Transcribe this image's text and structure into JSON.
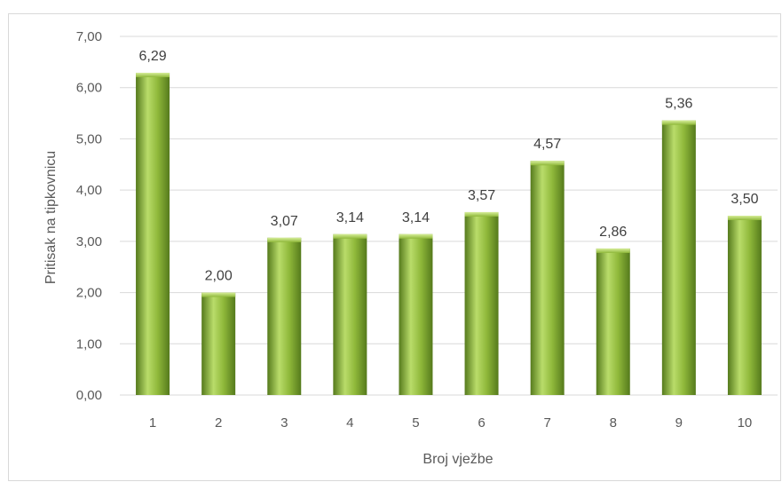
{
  "chart_data": {
    "type": "bar",
    "title": "",
    "xlabel": "Broj vježbe",
    "ylabel": "Pritisak na tipkovnicu",
    "categories": [
      "1",
      "2",
      "3",
      "4",
      "5",
      "6",
      "7",
      "8",
      "9",
      "10"
    ],
    "values": [
      6.29,
      2.0,
      3.07,
      3.14,
      3.14,
      3.57,
      4.57,
      2.86,
      5.36,
      3.5
    ],
    "value_labels": [
      "6,29",
      "2,00",
      "3,07",
      "3,14",
      "3,14",
      "3,57",
      "4,57",
      "2,86",
      "5,36",
      "3,50"
    ],
    "ylim": [
      0,
      7
    ],
    "yticks": [
      0,
      1,
      2,
      3,
      4,
      5,
      6,
      7
    ],
    "ytick_labels": [
      "0,00",
      "1,00",
      "2,00",
      "3,00",
      "4,00",
      "5,00",
      "6,00",
      "7,00"
    ],
    "grid": true,
    "legend": "none",
    "bar_color": "#8fb83a",
    "bar_color_light": "#b9dc6a",
    "bar_color_dark": "#557a1c",
    "grid_color": "#d9d9d9"
  }
}
